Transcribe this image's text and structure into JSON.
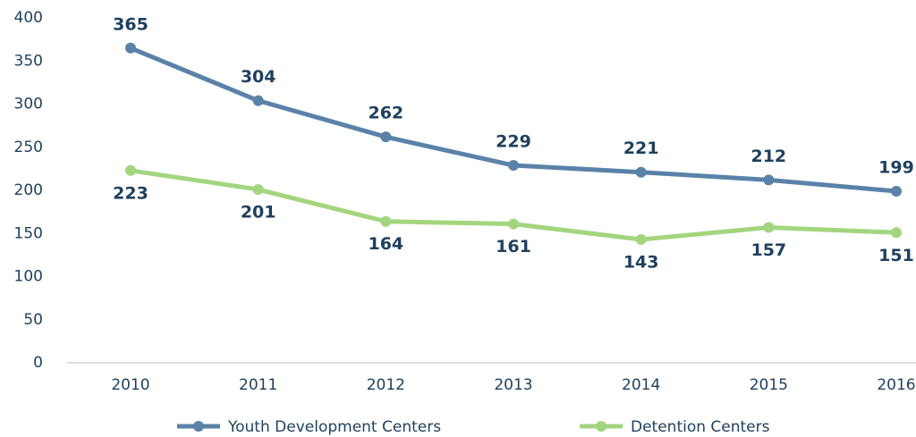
{
  "chart_data": {
    "type": "line",
    "categories": [
      "2010",
      "2011",
      "2012",
      "2013",
      "2014",
      "2015",
      "2016"
    ],
    "series": [
      {
        "name": "Youth Development Centers",
        "color": "#5a82a9",
        "values": [
          365,
          304,
          262,
          229,
          221,
          212,
          199
        ]
      },
      {
        "name": "Detention Centers",
        "color": "#a3d57e",
        "values": [
          223,
          201,
          164,
          161,
          143,
          157,
          151
        ]
      }
    ],
    "ylim": [
      0,
      400
    ],
    "yticks": [
      0,
      50,
      100,
      150,
      200,
      250,
      300,
      350,
      400
    ],
    "grid": false,
    "legend": "bottom"
  }
}
